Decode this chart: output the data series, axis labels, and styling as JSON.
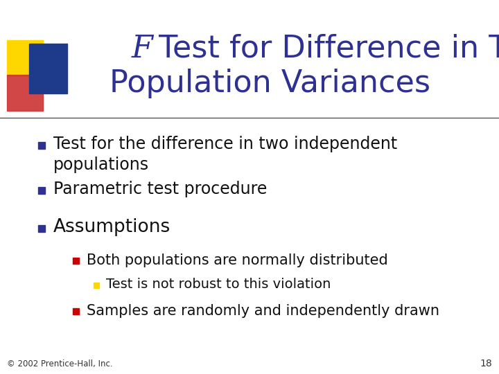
{
  "title_italic": "F",
  "title_line1": " Test for Difference in Two",
  "title_line2": "Population Variances",
  "title_color": "#2E3191",
  "background_color": "#FFFFFF",
  "bullet_color": "#2E3191",
  "bullet1_line1": "Test for the difference in two independent",
  "bullet1_line2": "populations",
  "bullet2": "Parametric test procedure",
  "bullet3": "Assumptions",
  "sub_bullet_color": "#CC0000",
  "sub_bullet1": "Both populations are normally distributed",
  "sub_sub_bullet_color": "#FFD700",
  "sub_sub_bullet1": "Test is not robust to this violation",
  "sub_bullet2": "Samples are randomly and independently drawn",
  "footer": "© 2002 Prentice-Hall, Inc.",
  "page_num": "18",
  "line_color": "#555555",
  "deco_yellow": "#FFD700",
  "deco_red": "#CC3333",
  "deco_blue": "#1E3A8A"
}
